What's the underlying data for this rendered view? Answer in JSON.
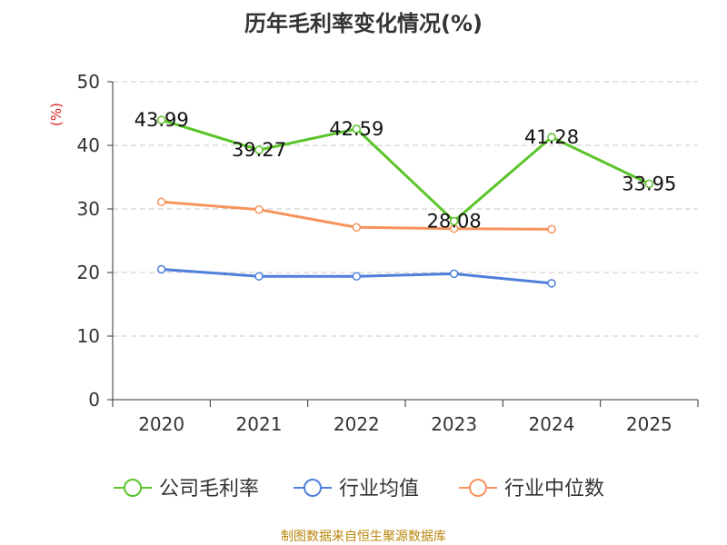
{
  "chart_data": {
    "type": "line",
    "title": "历年毛利率变化情况(%)",
    "ylabel": "(%)",
    "xlabel": "",
    "categories": [
      "2020",
      "2021",
      "2022",
      "2023",
      "2024",
      "2025"
    ],
    "ylim": [
      0,
      50
    ],
    "yticks": [
      0,
      10,
      20,
      30,
      40,
      50
    ],
    "grid": true,
    "legend_position": "bottom",
    "series": [
      {
        "name": "公司毛利率",
        "color": "#5cc42b",
        "values": [
          43.99,
          39.27,
          42.59,
          28.08,
          41.28,
          33.95
        ],
        "labels": [
          "43.99",
          "39.27",
          "42.59",
          "28.08",
          "41.28",
          "33.95"
        ]
      },
      {
        "name": "行业均值",
        "color": "#4e7fdb",
        "values": [
          20.5,
          19.4,
          19.4,
          19.8,
          18.3,
          null
        ]
      },
      {
        "name": "行业中位数",
        "color": "#f7935c",
        "values": [
          31.1,
          29.9,
          27.1,
          26.9,
          26.8,
          null
        ]
      }
    ]
  },
  "source_text": "制图数据来自恒生聚源数据库"
}
